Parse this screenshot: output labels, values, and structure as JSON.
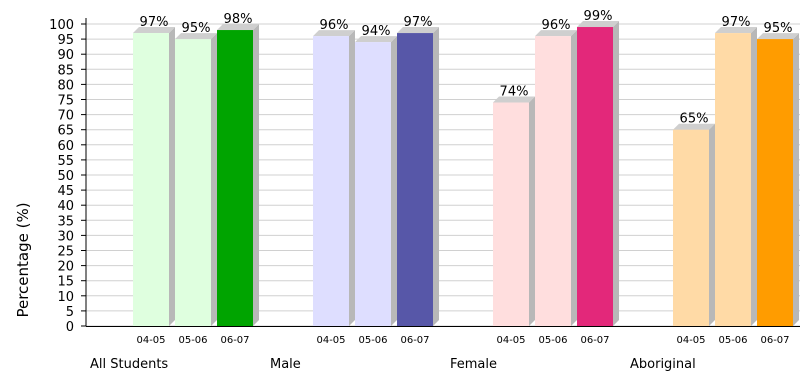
{
  "chart_data": {
    "type": "bar",
    "ylabel": "Percentage (%)",
    "ylim": [
      0,
      100
    ],
    "yticks": [
      0,
      5,
      10,
      15,
      20,
      25,
      30,
      35,
      40,
      45,
      50,
      55,
      60,
      65,
      70,
      75,
      80,
      85,
      90,
      95,
      100
    ],
    "grid": true,
    "value_suffix": "%",
    "groups": [
      {
        "name": "All Students",
        "categories": [
          "04-05",
          "05-06",
          "06-07"
        ],
        "values": [
          97,
          95,
          98
        ],
        "colors": [
          "#dfffdf",
          "#dfffdf",
          "#00a400"
        ]
      },
      {
        "name": "Male",
        "categories": [
          "04-05",
          "05-06",
          "06-07"
        ],
        "values": [
          96,
          94,
          97
        ],
        "colors": [
          "#dedeff",
          "#dedeff",
          "#5757a8"
        ]
      },
      {
        "name": "Female",
        "categories": [
          "04-05",
          "05-06",
          "06-07"
        ],
        "values": [
          74,
          96,
          99
        ],
        "colors": [
          "#ffdede",
          "#ffdede",
          "#e3287a"
        ]
      },
      {
        "name": "Aboriginal",
        "categories": [
          "04-05",
          "05-06",
          "06-07"
        ],
        "values": [
          65,
          97,
          95
        ],
        "colors": [
          "#ffdaa6",
          "#ffdaa6",
          "#ff9c00"
        ]
      }
    ]
  }
}
